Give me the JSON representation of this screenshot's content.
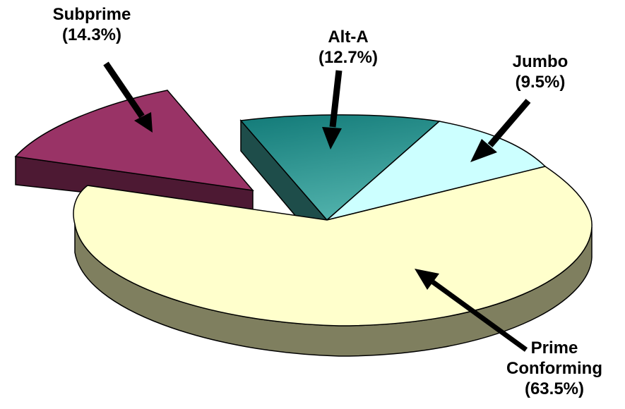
{
  "chart_data": {
    "type": "pie",
    "title": "",
    "style": "3d-exploded",
    "slices": [
      {
        "label": "Prime Conforming",
        "pct_label": "(63.5%)",
        "value": 63.5,
        "color": "#FFFFCC",
        "side_color": "#7F7F5F"
      },
      {
        "label": "Subprime",
        "pct_label": "(14.3%)",
        "value": 14.3,
        "color": "#993366",
        "side_color": "#4D1933"
      },
      {
        "label": "Alt-A",
        "pct_label": "(12.7%)",
        "value": 12.7,
        "color": "#2A8A86",
        "side_color": "#1E4D4A"
      },
      {
        "label": "Jumbo",
        "pct_label": "(9.5%)",
        "value": 9.5,
        "color": "#CCFFFF",
        "side_color": "#6A8A8A"
      }
    ]
  }
}
